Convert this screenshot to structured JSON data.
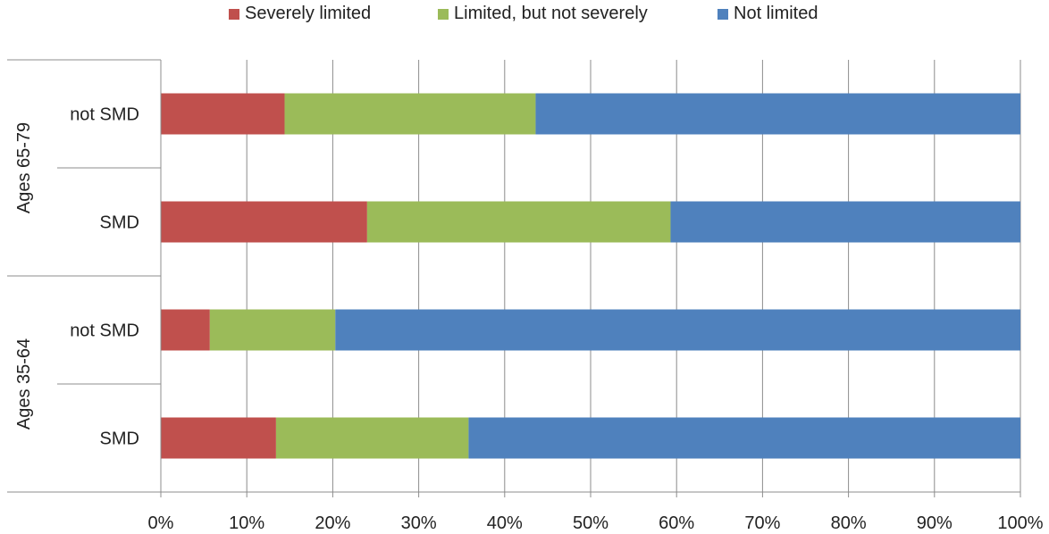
{
  "chart_data": {
    "type": "bar",
    "orientation": "horizontal",
    "stacked": "percent",
    "legend_position": "top",
    "series": [
      {
        "name": "Severely limited",
        "color": "#c0504d",
        "values": [
          13.4,
          5.7,
          24.0,
          14.4
        ]
      },
      {
        "name": "Limited, but not severely",
        "color": "#9bbb59",
        "values": [
          22.4,
          14.6,
          35.3,
          29.2
        ]
      },
      {
        "name": "Not limited",
        "color": "#4f81bd",
        "values": [
          64.2,
          79.7,
          40.7,
          56.4
        ]
      }
    ],
    "categories": [
      "SMD",
      "not SMD",
      "SMD",
      "not SMD"
    ],
    "category_groups": [
      {
        "label": "Ages 35-64",
        "members": [
          0,
          1
        ]
      },
      {
        "label": "Ages 65-79",
        "members": [
          2,
          3
        ]
      }
    ],
    "xlim": [
      0,
      100
    ],
    "x_ticks": [
      "0%",
      "10%",
      "20%",
      "30%",
      "40%",
      "50%",
      "60%",
      "70%",
      "80%",
      "90%",
      "100%"
    ],
    "grid": "vertical"
  }
}
